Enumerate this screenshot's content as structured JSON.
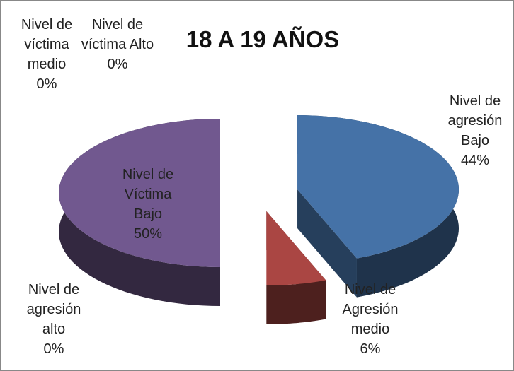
{
  "chart_data": {
    "type": "pie3d",
    "title": "18 A 19 AÑOS",
    "categories": [
      "Nivel de agresión Bajo",
      "Nivel de Agresión medio",
      "Nivel de agresión alto",
      "Nivel de Víctima Bajo",
      "Nivel de víctima medio",
      "Nivel de víctima Alto"
    ],
    "values": [
      44,
      6,
      0,
      50,
      0,
      0
    ],
    "value_labels": [
      "44%",
      "6%",
      "0%",
      "50%",
      "0%",
      "0%"
    ],
    "colors": [
      "#4572a7",
      "#aa4643",
      "#89a54e",
      "#71588f",
      "#4198af",
      "#db843d"
    ]
  }
}
